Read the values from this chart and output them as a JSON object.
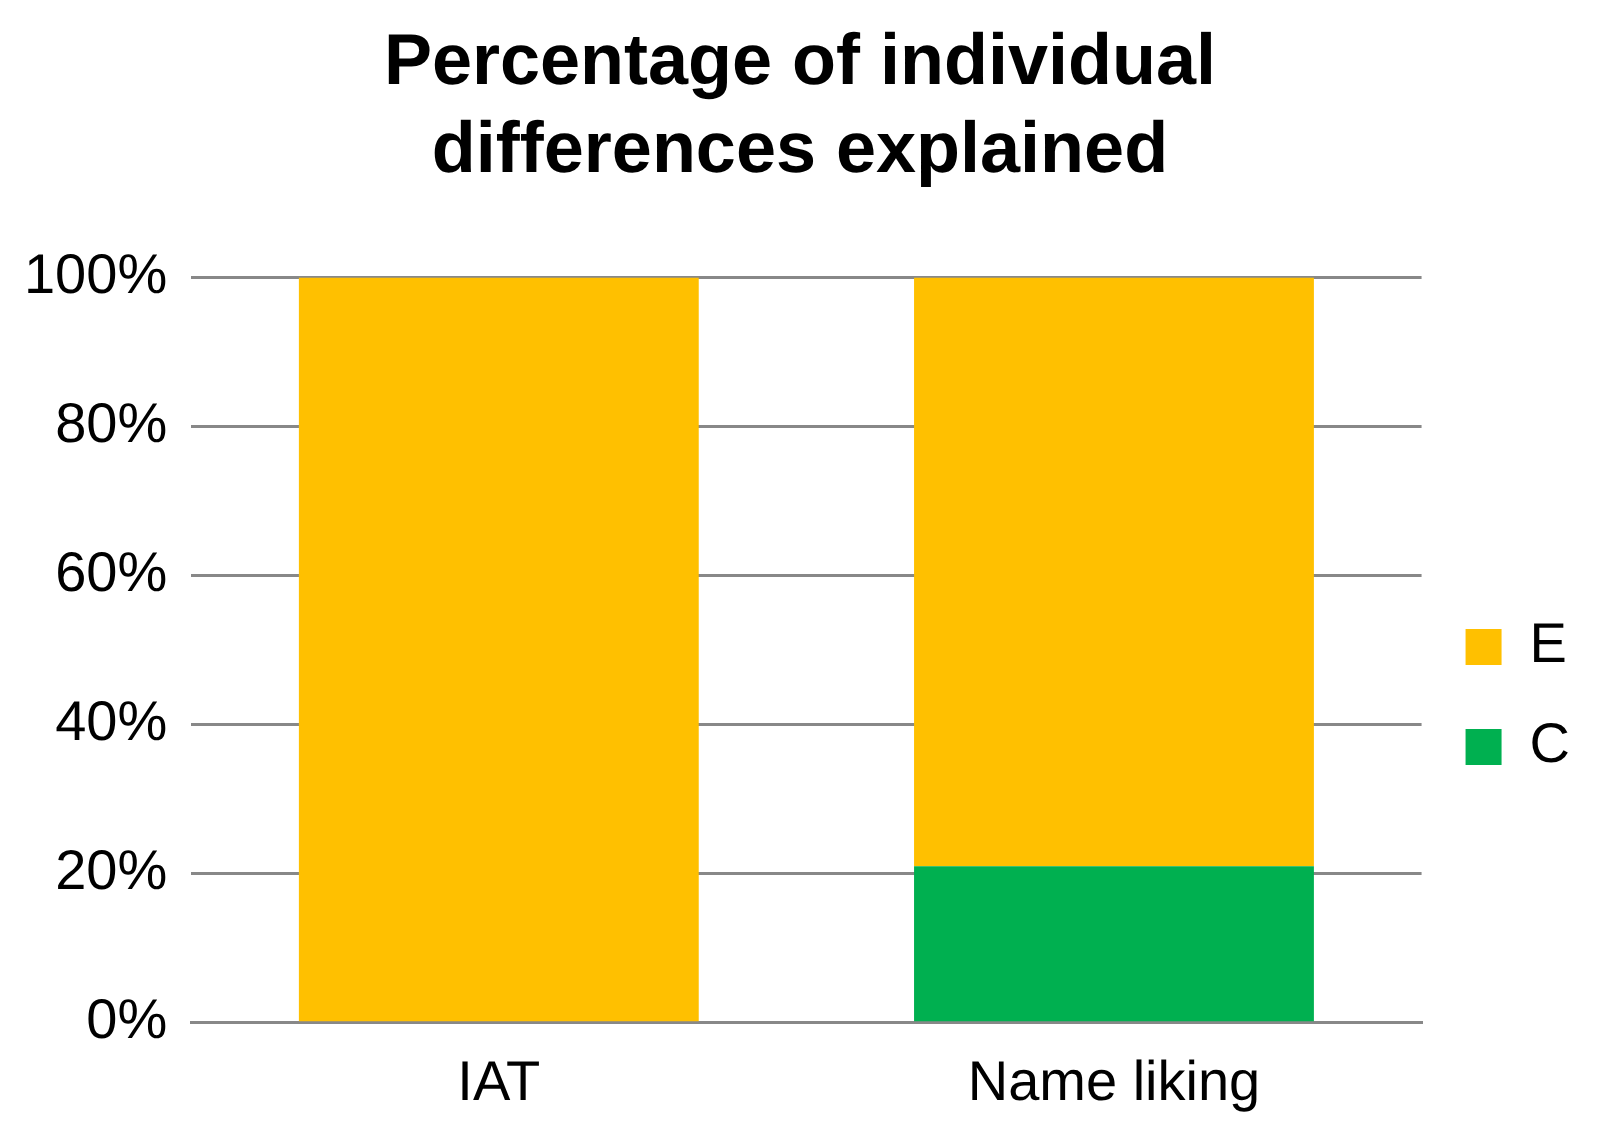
{
  "chart_data": {
    "type": "bar",
    "title": "Percentage of individual differences explained",
    "categories": [
      "IAT",
      "Name liking"
    ],
    "stacked": true,
    "series": [
      {
        "name": "C",
        "color": "#00b050",
        "values": [
          0,
          21
        ]
      },
      {
        "name": "E",
        "color": "#ffc000",
        "values": [
          100,
          79
        ]
      }
    ],
    "ylim": [
      0,
      100
    ],
    "yticks": [
      {
        "value": 0,
        "label": "0%"
      },
      {
        "value": 20,
        "label": "20%"
      },
      {
        "value": 40,
        "label": "40%"
      },
      {
        "value": 60,
        "label": "60%"
      },
      {
        "value": 80,
        "label": "80%"
      },
      {
        "value": 100,
        "label": "100%"
      }
    ],
    "grid": "y",
    "legend": "right"
  }
}
